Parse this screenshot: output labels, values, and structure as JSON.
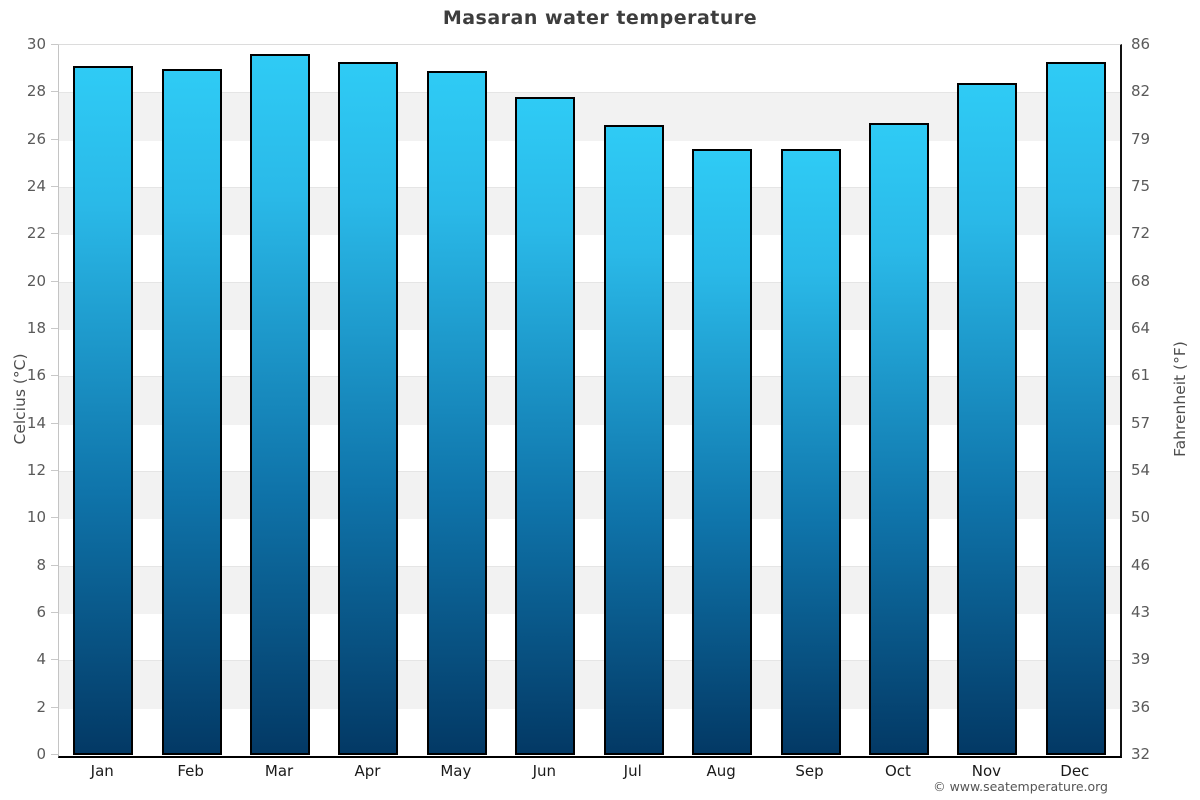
{
  "page": {
    "copyright": "© www.seatemperature.org"
  },
  "chart_data": {
    "type": "bar",
    "title": "Masaran water temperature",
    "categories": [
      "Jan",
      "Feb",
      "Mar",
      "Apr",
      "May",
      "Jun",
      "Jul",
      "Aug",
      "Sep",
      "Oct",
      "Nov",
      "Dec"
    ],
    "values": [
      29.1,
      29.0,
      29.6,
      29.3,
      28.9,
      27.8,
      26.6,
      25.6,
      25.6,
      26.7,
      28.4,
      29.3
    ],
    "unit": "°C",
    "ylabel_left": "Celcius (°C)",
    "ylabel_right": "Fahrenheit (°F)",
    "ylim": [
      0,
      30
    ],
    "yticks_celsius": [
      0,
      2,
      4,
      6,
      8,
      10,
      12,
      14,
      16,
      18,
      20,
      22,
      24,
      26,
      28,
      30
    ],
    "yticks_fahrenheit": [
      32,
      36,
      39,
      43,
      46,
      50,
      54,
      57,
      61,
      64,
      68,
      72,
      75,
      79,
      82,
      86
    ],
    "legend": "none",
    "grid": "alternating-horizontal-bands",
    "colors": {
      "bar_gradient_top": "#2fcbf5",
      "bar_gradient_bottom": "#033965",
      "bar_border": "#000000",
      "band_alt": "#f2f2f2",
      "bottom_axis": "#000000"
    }
  }
}
